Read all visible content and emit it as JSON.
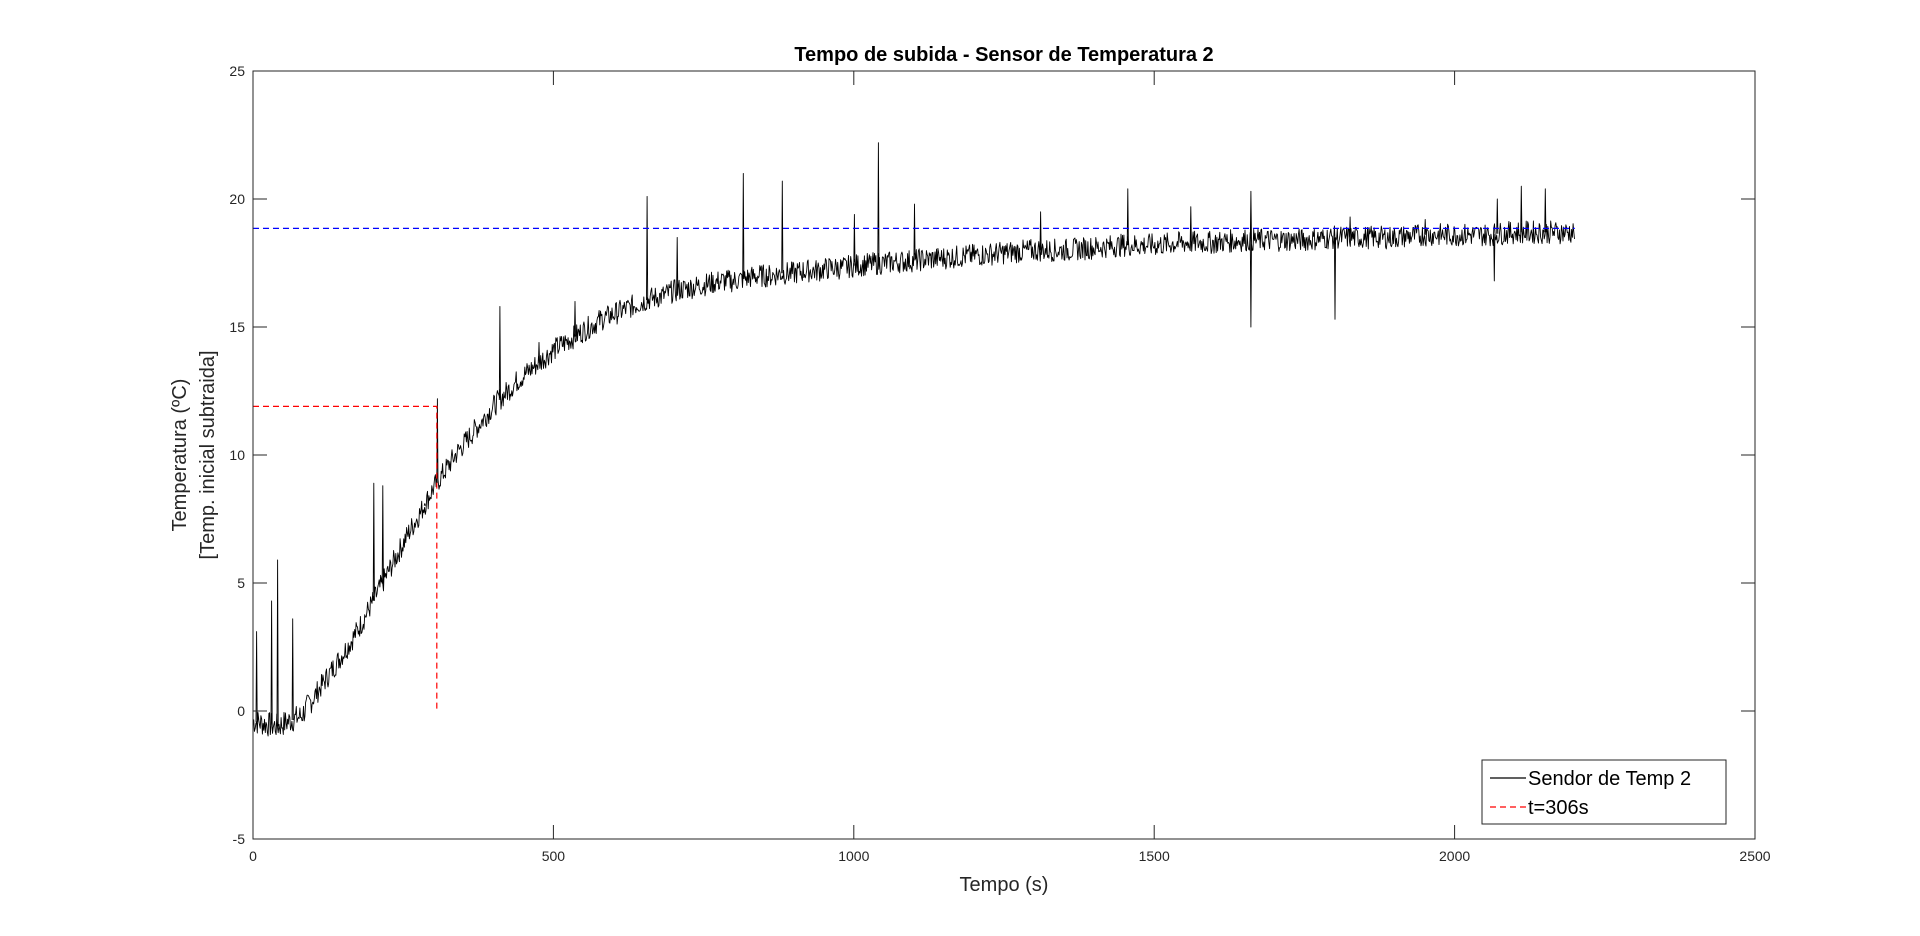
{
  "chart_data": {
    "type": "line",
    "title": "Tempo de subida - Sensor de Temperatura 2",
    "xlabel": "Tempo (s)",
    "ylabel_line1": "Temperatura (ºC)",
    "ylabel_line2": "[Temp. inicial subtraida]",
    "xlim": [
      0,
      2500
    ],
    "ylim": [
      -5,
      25
    ],
    "xticks": [
      0,
      500,
      1000,
      1500,
      2000,
      2500
    ],
    "yticks": [
      -5,
      0,
      5,
      10,
      15,
      20,
      25
    ],
    "grid": false,
    "legend_position": "bottom-right",
    "series": [
      {
        "name": "Sendor de Temp 2",
        "color": "#000000",
        "style": "solid",
        "x": [
          0,
          20,
          40,
          60,
          80,
          100,
          120,
          140,
          160,
          180,
          200,
          220,
          240,
          260,
          280,
          300,
          320,
          340,
          360,
          380,
          400,
          420,
          440,
          460,
          480,
          500,
          520,
          540,
          560,
          580,
          600,
          620,
          640,
          660,
          680,
          700,
          720,
          740,
          760,
          780,
          800,
          820,
          840,
          860,
          880,
          900,
          920,
          940,
          960,
          980,
          1000,
          1050,
          1100,
          1150,
          1200,
          1250,
          1300,
          1350,
          1400,
          1450,
          1500,
          1550,
          1600,
          1650,
          1700,
          1750,
          1800,
          1850,
          1900,
          1950,
          2000,
          2050,
          2100,
          2150,
          2200
        ],
        "y": [
          -0.4,
          -0.5,
          -0.6,
          -0.4,
          -0.2,
          0.5,
          1.2,
          1.9,
          2.6,
          3.4,
          4.3,
          5.2,
          6.1,
          7.0,
          7.8,
          8.7,
          9.4,
          10.1,
          10.7,
          11.3,
          11.9,
          12.4,
          12.9,
          13.3,
          13.7,
          14.1,
          14.4,
          14.7,
          15.0,
          15.3,
          15.5,
          15.7,
          15.9,
          16.1,
          16.2,
          16.4,
          16.5,
          16.6,
          16.7,
          16.8,
          16.8,
          16.9,
          17.0,
          17.0,
          17.1,
          17.1,
          17.2,
          17.2,
          17.3,
          17.3,
          17.4,
          17.5,
          17.6,
          17.7,
          17.8,
          17.9,
          18.0,
          18.0,
          18.1,
          18.2,
          18.2,
          18.3,
          18.3,
          18.4,
          18.4,
          18.4,
          18.5,
          18.5,
          18.5,
          18.6,
          18.6,
          18.6,
          18.7,
          18.7,
          18.7
        ],
        "spikes": [
          {
            "x": 5,
            "y": 3.1
          },
          {
            "x": 30,
            "y": 4.3
          },
          {
            "x": 40,
            "y": 5.9
          },
          {
            "x": 65,
            "y": 3.6
          },
          {
            "x": 200,
            "y": 8.9
          },
          {
            "x": 215,
            "y": 8.8
          },
          {
            "x": 285,
            "y": 8.1
          },
          {
            "x": 306,
            "y": 12.2
          },
          {
            "x": 410,
            "y": 15.8
          },
          {
            "x": 475,
            "y": 14.4
          },
          {
            "x": 535,
            "y": 16.0
          },
          {
            "x": 655,
            "y": 20.1
          },
          {
            "x": 705,
            "y": 18.5
          },
          {
            "x": 815,
            "y": 21.0
          },
          {
            "x": 880,
            "y": 20.7
          },
          {
            "x": 1000,
            "y": 19.4
          },
          {
            "x": 1040,
            "y": 22.2
          },
          {
            "x": 1100,
            "y": 19.8
          },
          {
            "x": 1310,
            "y": 19.5
          },
          {
            "x": 1455,
            "y": 20.4
          },
          {
            "x": 1560,
            "y": 19.7
          },
          {
            "x": 1660,
            "y": 20.3
          },
          {
            "x": 1660,
            "y": 15.0
          },
          {
            "x": 1800,
            "y": 15.3
          },
          {
            "x": 1825,
            "y": 19.3
          },
          {
            "x": 1950,
            "y": 19.2
          },
          {
            "x": 2070,
            "y": 20.0
          },
          {
            "x": 2110,
            "y": 20.5
          },
          {
            "x": 2150,
            "y": 20.4
          },
          {
            "x": 2065,
            "y": 16.8
          }
        ]
      },
      {
        "name": "t=306s",
        "color": "#ff0000",
        "style": "dashed",
        "x": [
          0,
          306,
          306
        ],
        "y": [
          11.9,
          11.9,
          0
        ]
      },
      {
        "color": "#0000ff",
        "style": "dashed",
        "x": [
          0,
          2200
        ],
        "y": [
          18.85,
          18.85
        ]
      }
    ]
  }
}
